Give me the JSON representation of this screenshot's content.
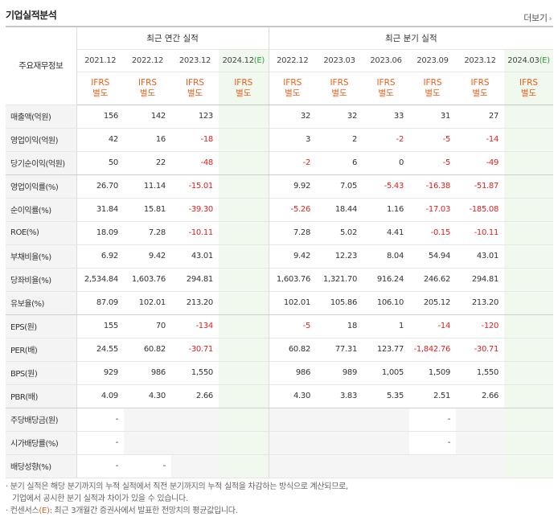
{
  "title": "기업실적분석",
  "more_label": "더보기",
  "header": {
    "row_label": "주요재무정보",
    "annual_label": "최근 연간 실적",
    "quarter_label": "최근 분기 실적",
    "annual_periods": [
      "2021.12",
      "2022.12",
      "2023.12",
      "2024.12"
    ],
    "annual_estimate_suffix": "(E)",
    "quarter_periods": [
      "2022.12",
      "2023.03",
      "2023.06",
      "2023.09",
      "2023.12",
      "2024.03"
    ],
    "quarter_estimate_suffix": "(E)",
    "ifrs_line1": "IFRS",
    "ifrs_line2": "별도"
  },
  "rows": [
    {
      "label": "매출액(억원)",
      "values": [
        "156",
        "142",
        "123",
        "",
        "32",
        "32",
        "33",
        "31",
        "27",
        ""
      ]
    },
    {
      "label": "영업이익(억원)",
      "values": [
        "42",
        "16",
        "-18",
        "",
        "3",
        "2",
        "-2",
        "-5",
        "-14",
        ""
      ]
    },
    {
      "label": "당기순이익(억원)",
      "values": [
        "50",
        "22",
        "-48",
        "",
        "-2",
        "6",
        "0",
        "-5",
        "-49",
        ""
      ]
    },
    {
      "label": "영업이익률(%)",
      "values": [
        "26.70",
        "11.14",
        "-15.01",
        "",
        "9.92",
        "7.05",
        "-5.43",
        "-16.38",
        "-51.87",
        ""
      ]
    },
    {
      "label": "순이익률(%)",
      "values": [
        "31.84",
        "15.81",
        "-39.30",
        "",
        "-5.26",
        "18.44",
        "1.16",
        "-17.03",
        "-185.08",
        ""
      ]
    },
    {
      "label": "ROE(%)",
      "values": [
        "18.09",
        "7.28",
        "-10.11",
        "",
        "7.28",
        "5.02",
        "4.41",
        "-0.15",
        "-10.11",
        ""
      ]
    },
    {
      "label": "부채비율(%)",
      "values": [
        "6.92",
        "9.42",
        "43.01",
        "",
        "9.42",
        "12.23",
        "8.04",
        "54.94",
        "43.01",
        ""
      ]
    },
    {
      "label": "당좌비율(%)",
      "values": [
        "2,534.84",
        "1,603.76",
        "294.81",
        "",
        "1,603.76",
        "1,321.70",
        "916.24",
        "246.62",
        "294.81",
        ""
      ]
    },
    {
      "label": "유보율(%)",
      "values": [
        "87.09",
        "102.01",
        "213.20",
        "",
        "102.01",
        "105.86",
        "106.10",
        "205.12",
        "213.20",
        ""
      ]
    },
    {
      "label": "EPS(원)",
      "values": [
        "155",
        "70",
        "-134",
        "",
        "-5",
        "18",
        "1",
        "-14",
        "-120",
        ""
      ]
    },
    {
      "label": "PER(배)",
      "values": [
        "24.55",
        "60.82",
        "-30.71",
        "",
        "60.82",
        "77.31",
        "123.77",
        "-1,842.76",
        "-30.71",
        ""
      ]
    },
    {
      "label": "BPS(원)",
      "values": [
        "929",
        "986",
        "1,550",
        "",
        "986",
        "989",
        "1,005",
        "1,509",
        "1,550",
        ""
      ]
    },
    {
      "label": "PBR(배)",
      "values": [
        "4.09",
        "4.30",
        "2.66",
        "",
        "4.30",
        "3.83",
        "5.35",
        "2.51",
        "2.66",
        ""
      ]
    },
    {
      "label": "주당배당금(원)",
      "values": [
        "-",
        "",
        "",
        "",
        "",
        "",
        "",
        "-",
        "",
        ""
      ]
    },
    {
      "label": "시가배당률(%)",
      "values": [
        "-",
        "",
        "",
        "",
        "",
        "",
        "",
        "-",
        "",
        ""
      ]
    },
    {
      "label": "배당성향(%)",
      "values": [
        "-",
        "-",
        "",
        "",
        "",
        "",
        "",
        "",
        "",
        ""
      ]
    }
  ],
  "notes": {
    "line1": "· 분기 실적은 해당 분기까지의 누적 실적에서 직전 분기까지의 누적 실적을 차감하는 방식으로 계산되므로,",
    "line2": "기업에서 공시한 분기 실적과 차이가 있을 수 있습니다.",
    "line3_prefix": "· 컨센서스",
    "line3_mark": "(E)",
    "line3_suffix": ": 최근 3개월간 증권사에서 발표한 전망치의 평균값입니다."
  },
  "colors": {
    "ifrs": "#e8601c",
    "negative": "#e02020",
    "estimate_bg": "#f1f8ee"
  }
}
